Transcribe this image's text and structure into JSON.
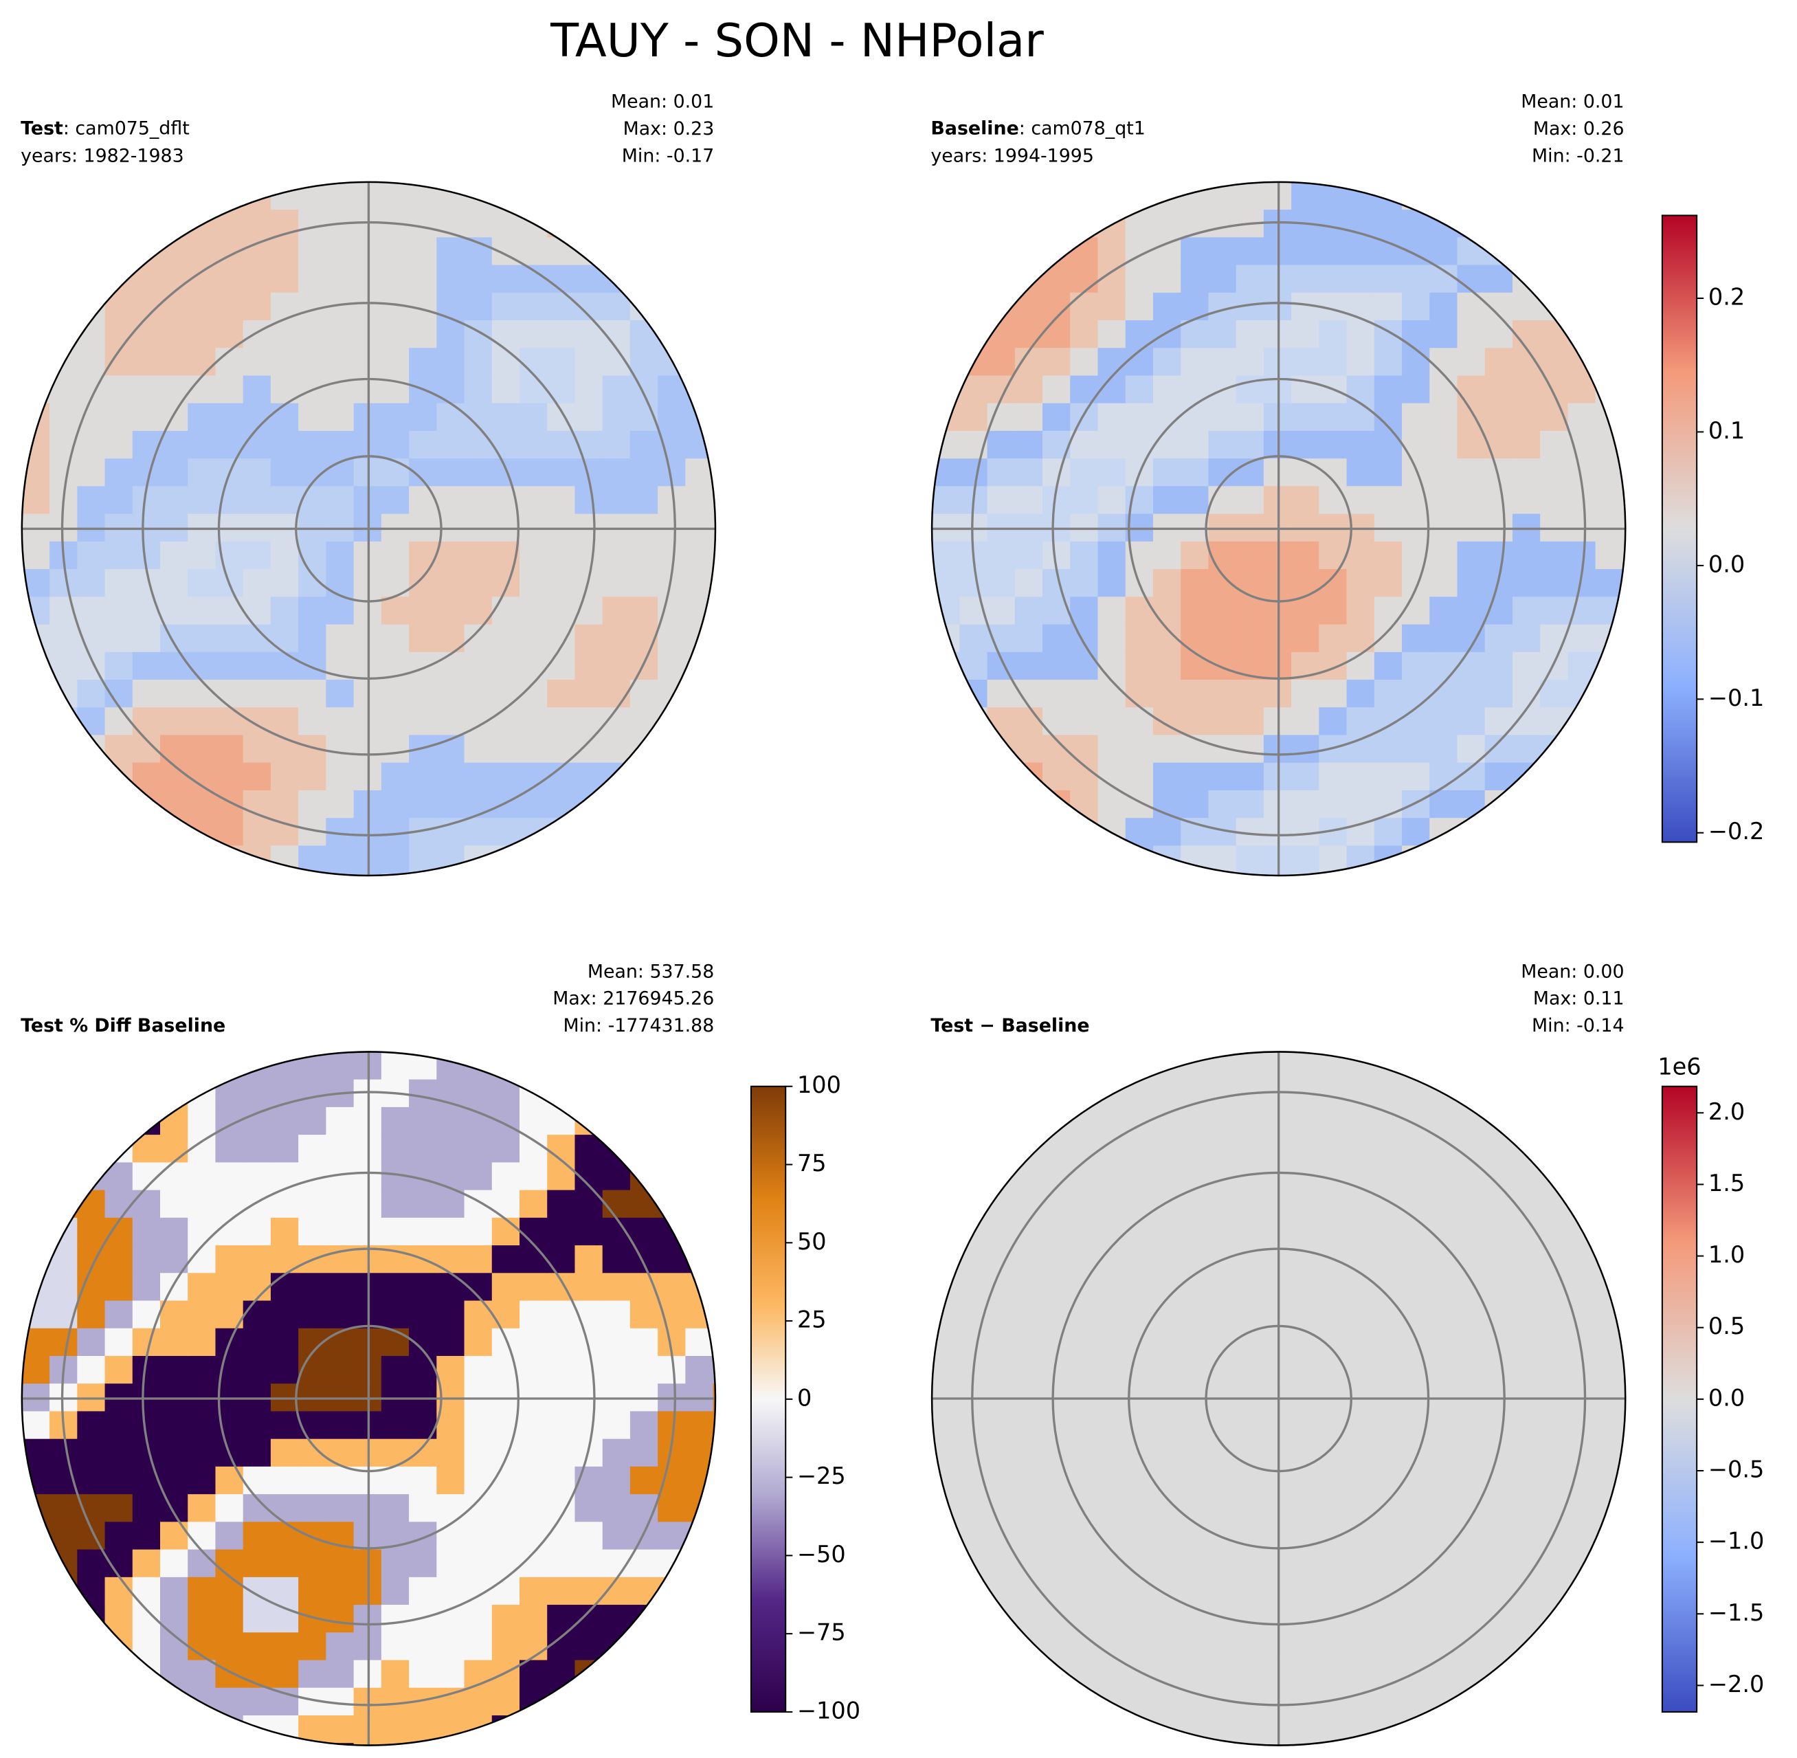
{
  "title": "TAUY - SON - NHPolar",
  "chart_data": [
    {
      "type": "map",
      "label": "Test",
      "case": ": cam075_dflt",
      "years": "years: 1982-1983",
      "stats": [
        "Mean:  0.01",
        "Max:  0.23",
        "Min: -0.17"
      ]
    },
    {
      "type": "map",
      "label": "Baseline",
      "case": ": cam078_qt1",
      "years": "years: 1994-1995",
      "stats": [
        "Mean:  0.01",
        "Max:  0.26",
        "Min: -0.21"
      ],
      "colorbar": {
        "colormap": "coolwarm",
        "ylim": [
          -0.207,
          0.262
        ],
        "yticks": [
          {
            "value": -0.2,
            "label": "−0.2"
          },
          {
            "value": -0.1,
            "label": "−0.1"
          },
          {
            "value": 0,
            "label": "0.0"
          },
          0.1,
          0.2
        ]
      }
    },
    {
      "type": "map",
      "label": "Test % Diff Baseline",
      "stats": [
        "Mean: 537.58",
        "Max: 2176945.26",
        "Min: -177431.88"
      ],
      "colorbar": {
        "colormap": "PuOr",
        "ylim": [
          -100,
          100
        ],
        "yticks": [
          {
            "value": -100,
            "label": "−100"
          },
          {
            "value": -75,
            "label": "−75"
          },
          {
            "value": -50,
            "label": "−50"
          },
          {
            "value": -25,
            "label": "−25"
          },
          0,
          25,
          50,
          75,
          100
        ]
      }
    },
    {
      "type": "map",
      "label": "Test − Baseline",
      "stats": [
        "Mean:  0.00",
        "Max:  0.11",
        "Min: -0.14"
      ],
      "colorbar": {
        "colormap": "coolwarm",
        "ylim": [
          -2185000,
          2185000
        ],
        "offset_text": "1e6",
        "yticks": [
          {
            "value": -2000000,
            "label": "−2.0"
          },
          {
            "value": -1500000,
            "label": "−1.5"
          },
          {
            "value": -1000000,
            "label": "−1.0"
          },
          {
            "value": -500000,
            "label": "−0.5"
          },
          {
            "value": 0,
            "label": "0.0"
          },
          {
            "value": 500000,
            "label": "0.5"
          },
          {
            "value": 1000000,
            "label": "1.0"
          },
          {
            "value": 1500000,
            "label": "1.5"
          },
          {
            "value": 2000000,
            "label": "2.0"
          }
        ]
      }
    }
  ]
}
